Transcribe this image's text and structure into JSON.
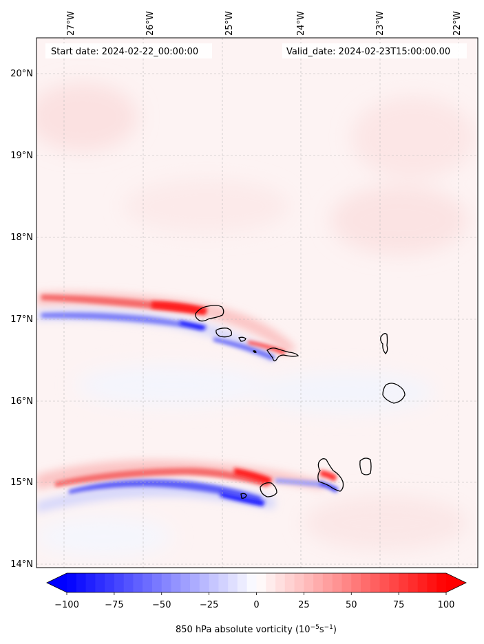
{
  "map": {
    "start_date_text": "Start date: 2024-02-22_00:00:00",
    "valid_date_text": "Valid_date: 2024-02-23T15:00:00.00",
    "lon_ticks": [
      "27°W",
      "26°W",
      "25°W",
      "24°W",
      "23°W",
      "22°W"
    ],
    "lat_ticks": [
      "20°N",
      "19°N",
      "18°N",
      "17°N",
      "16°N",
      "15°N",
      "14°N"
    ],
    "extent": {
      "lon_min": -27.35,
      "lon_max": -21.75,
      "lat_min": 13.95,
      "lat_max": 20.42
    },
    "gridlines": true
  },
  "colorbar": {
    "ticks": [
      "−100",
      "−75",
      "−50",
      "−25",
      "0",
      "25",
      "50",
      "75",
      "100"
    ],
    "tick_values": [
      -100,
      -75,
      -50,
      -25,
      0,
      25,
      50,
      75,
      100
    ],
    "label_text": "850 hPa absolute vorticity (10",
    "label_exp1": "−5",
    "label_mid": "s",
    "label_exp2": "−1",
    "label_end": ")",
    "colormap": "bwr",
    "min_color": "#0000ff",
    "mid_color": "#ffffff",
    "max_color": "#ff0000",
    "extend": "both"
  }
}
